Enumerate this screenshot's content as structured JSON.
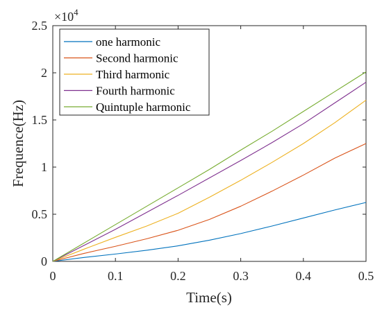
{
  "chart_data": {
    "type": "line",
    "title": "",
    "xlabel": "Time(s)",
    "ylabel": "Frequence(Hz)",
    "xlim": [
      0,
      0.5
    ],
    "ylim": [
      0,
      25000
    ],
    "x_ticks": [
      0,
      0.1,
      0.2,
      0.3,
      0.4,
      0.5
    ],
    "x_tick_labels": [
      "0",
      "0.1",
      "0.2",
      "0.3",
      "0.4",
      "0.5"
    ],
    "y_ticks": [
      0,
      5000,
      10000,
      15000,
      20000,
      25000
    ],
    "y_tick_labels": [
      "0",
      "0.5",
      "1",
      "1.5",
      "2",
      "2.5"
    ],
    "y_multiplier": {
      "base": "×10",
      "exponent": "4"
    },
    "grid": false,
    "legend_position": "top-left",
    "x": [
      0,
      0.05,
      0.1,
      0.15,
      0.2,
      0.25,
      0.3,
      0.35,
      0.4,
      0.45,
      0.5
    ],
    "series": [
      {
        "name": "one harmonic",
        "color": "#0072BD",
        "values": [
          0,
          420,
          780,
          1180,
          1650,
          2250,
          2950,
          3750,
          4600,
          5450,
          6250
        ]
      },
      {
        "name": "Second harmonic",
        "color": "#D95319",
        "values": [
          0,
          850,
          1600,
          2400,
          3300,
          4450,
          5850,
          7450,
          9150,
          10950,
          12500
        ]
      },
      {
        "name": "Third harmonic",
        "color": "#EDB120",
        "values": [
          0,
          1300,
          2550,
          3750,
          5100,
          6800,
          8600,
          10500,
          12500,
          14700,
          17100
        ]
      },
      {
        "name": "Fourth harmonic",
        "color": "#7E2F8E",
        "values": [
          0,
          1700,
          3400,
          5200,
          7000,
          8850,
          10700,
          12600,
          14600,
          16800,
          19000
        ]
      },
      {
        "name": "Quintuple harmonic",
        "color": "#77AC30",
        "values": [
          0,
          1950,
          3900,
          5850,
          7800,
          9750,
          11800,
          13800,
          15900,
          18000,
          20100
        ]
      }
    ]
  }
}
